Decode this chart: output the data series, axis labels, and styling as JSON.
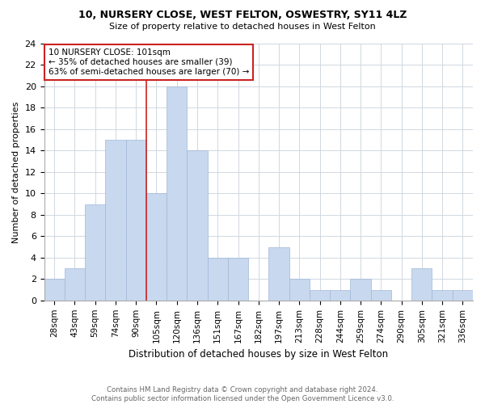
{
  "title1": "10, NURSERY CLOSE, WEST FELTON, OSWESTRY, SY11 4LZ",
  "title2": "Size of property relative to detached houses in West Felton",
  "xlabel": "Distribution of detached houses by size in West Felton",
  "ylabel": "Number of detached properties",
  "footnote1": "Contains HM Land Registry data © Crown copyright and database right 2024.",
  "footnote2": "Contains public sector information licensed under the Open Government Licence v3.0.",
  "annotation_line1": "10 NURSERY CLOSE: 101sqm",
  "annotation_line2": "← 35% of detached houses are smaller (39)",
  "annotation_line3": "63% of semi-detached houses are larger (70) →",
  "categories": [
    "28sqm",
    "43sqm",
    "59sqm",
    "74sqm",
    "90sqm",
    "105sqm",
    "120sqm",
    "136sqm",
    "151sqm",
    "167sqm",
    "182sqm",
    "197sqm",
    "213sqm",
    "228sqm",
    "244sqm",
    "259sqm",
    "274sqm",
    "290sqm",
    "305sqm",
    "321sqm",
    "336sqm"
  ],
  "values": [
    2,
    3,
    9,
    15,
    15,
    10,
    20,
    14,
    4,
    4,
    0,
    5,
    2,
    1,
    1,
    2,
    1,
    0,
    3,
    1,
    1
  ],
  "bar_color": "#c8d8ee",
  "bar_edge_color": "#a0b8d8",
  "highlight_color": "#cc2222",
  "annotation_box_color": "#cc2222",
  "ylim": [
    0,
    24
  ],
  "yticks": [
    0,
    2,
    4,
    6,
    8,
    10,
    12,
    14,
    16,
    18,
    20,
    22,
    24
  ],
  "red_line_index": 5,
  "bg_color": "#ffffff",
  "grid_color": "#d0d8e0"
}
